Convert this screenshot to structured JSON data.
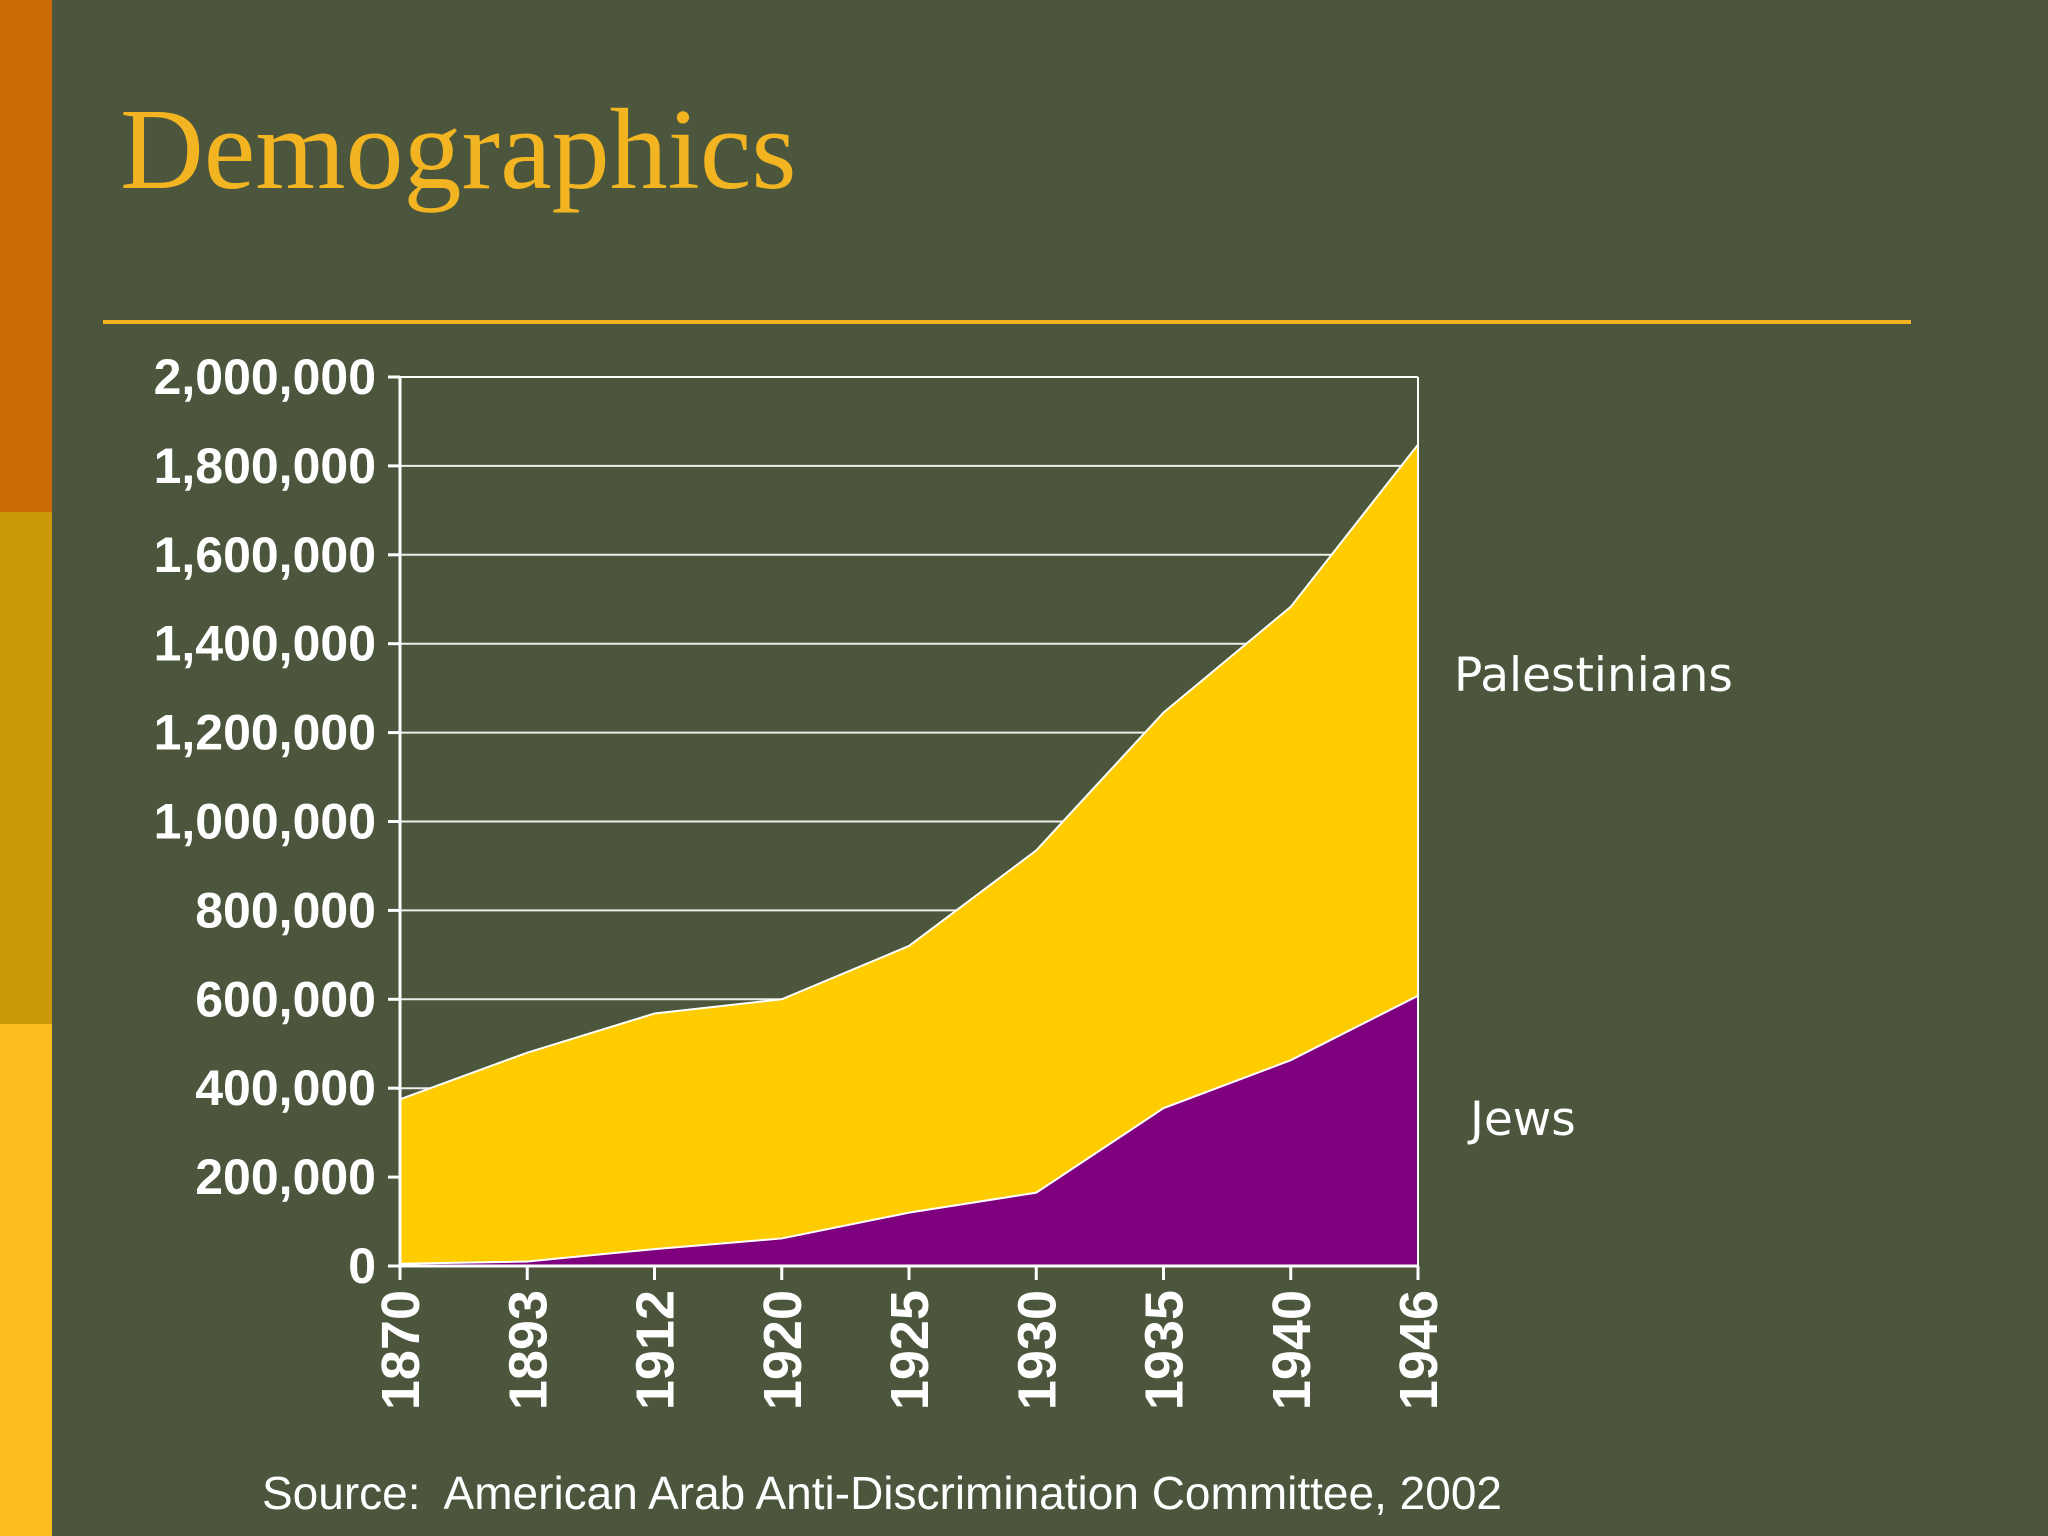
{
  "slide": {
    "title": "Demographics",
    "source": "Source:  American Arab Anti-Discrimination Committee, 2002"
  },
  "colors": {
    "background": "#4b563c",
    "title": "#f2b521",
    "accent_top": "#cc6a05",
    "accent_mid": "#cc9a08",
    "accent_bottom": "#fbbd1d",
    "palestinians": "#ffcc00",
    "jews": "#7e007e"
  },
  "chart_data": {
    "type": "area",
    "stacked": true,
    "categories": [
      "1870",
      "1893",
      "1912",
      "1920",
      "1925",
      "1930",
      "1935",
      "1940",
      "1946"
    ],
    "series": [
      {
        "name": "Jews",
        "values": [
          5000,
          10000,
          38000,
          62000,
          120000,
          165000,
          355000,
          463000,
          608000
        ]
      },
      {
        "name": "Palestinians",
        "values": [
          370000,
          470000,
          530000,
          538000,
          600000,
          770000,
          890000,
          1020000,
          1240000
        ]
      }
    ],
    "ylim": [
      0,
      2000000
    ],
    "yticks": [
      0,
      200000,
      400000,
      600000,
      800000,
      1000000,
      1200000,
      1400000,
      1600000,
      1800000,
      2000000
    ],
    "ytick_labels": [
      "0",
      "200,000",
      "400,000",
      "600,000",
      "800,000",
      "1,000,000",
      "1,200,000",
      "1,400,000",
      "1,600,000",
      "1,800,000",
      "2,000,000"
    ],
    "series_labels": {
      "Palestinians": "Palestinians",
      "Jews": "Jews"
    },
    "grid": true,
    "xlabel": "",
    "ylabel": ""
  }
}
